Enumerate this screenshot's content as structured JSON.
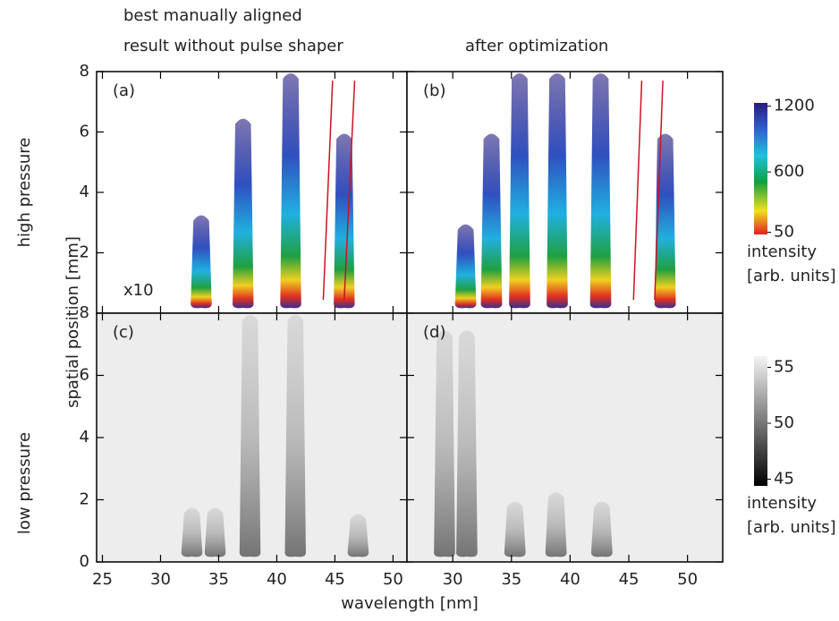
{
  "titles": [
    "best manually aligned",
    "result without pulse shaper",
    "after optimization"
  ],
  "row_labels": [
    "high pressure",
    "low pressure"
  ],
  "ylabel": "spatial position [mm]",
  "xlabel": "wavelength [nm]",
  "chart_data": [
    {
      "type": "heatmap",
      "label": "(a)",
      "annotation": "x10",
      "colormap": "color",
      "xlim": [
        24.5,
        51.2
      ],
      "ylim": [
        0,
        8
      ],
      "xticks": [
        25,
        30,
        35,
        40,
        45,
        50
      ],
      "yticks": [
        2,
        4,
        6,
        8
      ],
      "x": [
        33.5,
        37.1,
        41.2,
        45.8
      ],
      "values": [
        3.3,
        6.5,
        8,
        6
      ],
      "red_lines": [
        {
          "x": [
            44.0,
            44.8
          ],
          "y": [
            0.44,
            7.7
          ]
        },
        {
          "x": [
            45.8,
            46.7
          ],
          "y": [
            0.44,
            7.7
          ]
        }
      ]
    },
    {
      "type": "heatmap",
      "label": "(b)",
      "colormap": "color",
      "xlim": [
        26.1,
        53.0
      ],
      "ylim": [
        0,
        8
      ],
      "xticks": [
        30,
        35,
        40,
        45,
        50
      ],
      "yticks": [
        2,
        4,
        6,
        8
      ],
      "x": [
        31.1,
        33.3,
        35.7,
        38.9,
        42.6,
        48.1
      ],
      "values": [
        3,
        6,
        8,
        8,
        8,
        6
      ],
      "red_lines": [
        {
          "x": [
            45.4,
            46.1
          ],
          "y": [
            0.44,
            7.7
          ]
        },
        {
          "x": [
            47.2,
            47.9
          ],
          "y": [
            0.44,
            7.7
          ]
        }
      ]
    },
    {
      "type": "heatmap",
      "label": "(c)",
      "colormap": "gray",
      "xlim": [
        24.5,
        51.2
      ],
      "ylim": [
        0,
        8
      ],
      "xticks": [
        25,
        30,
        35,
        40,
        45,
        50
      ],
      "yticks": [
        0,
        2,
        4,
        6,
        8
      ],
      "x": [
        32.7,
        34.7,
        37.7,
        41.6,
        47
      ],
      "values": [
        1.8,
        1.8,
        8,
        8,
        1.6
      ]
    },
    {
      "type": "heatmap",
      "label": "(d)",
      "colormap": "gray",
      "xlim": [
        26.1,
        53.0
      ],
      "ylim": [
        0,
        8
      ],
      "xticks": [
        30,
        35,
        40,
        45,
        50
      ],
      "yticks": [
        0,
        2,
        4,
        6,
        8
      ],
      "x": [
        29.3,
        31.2,
        35.3,
        38.8,
        42.7
      ],
      "values": [
        7.5,
        7.5,
        2,
        2.3,
        2
      ]
    }
  ],
  "colorbars": [
    {
      "colormap": "color",
      "lim": [
        30,
        1230
      ],
      "ticks": [
        50,
        600,
        1200
      ],
      "label": [
        "intensity",
        "[arb. units]"
      ]
    },
    {
      "colormap": "gray",
      "lim": [
        44.4,
        56.0
      ],
      "ticks": [
        45,
        50,
        55
      ],
      "label": [
        "intensity",
        "[arb. units]"
      ]
    }
  ]
}
